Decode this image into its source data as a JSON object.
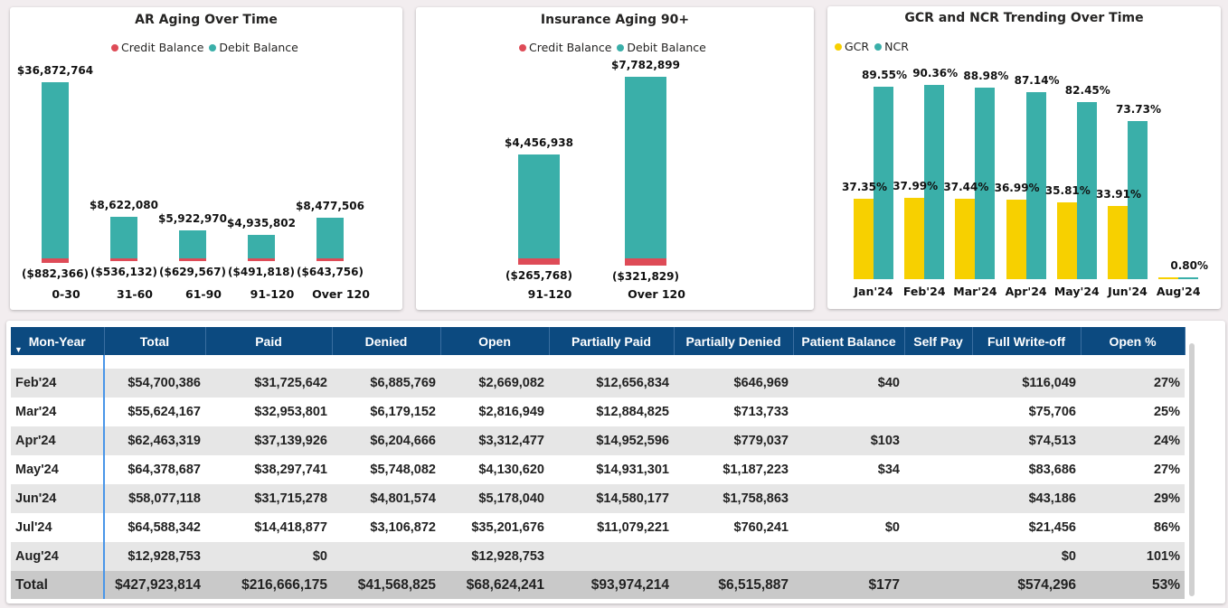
{
  "colors": {
    "credit": "#de4b57",
    "debit": "#3aafa9",
    "gcr": "#f7d000",
    "ncr": "#3aafa9",
    "header": "#0c4a80"
  },
  "ar_chart": {
    "chart_data": {
      "type": "bar",
      "stacked": true,
      "title": "AR Aging Over Time",
      "categories": [
        "0-30",
        "31-60",
        "61-90",
        "91-120",
        "Over 120"
      ],
      "series": [
        {
          "name": "Credit Balance",
          "values": [
            -882366,
            -536132,
            -629567,
            -491818,
            -643756
          ],
          "labels": [
            "($882,366)",
            "($536,132)",
            "($629,567)",
            "($491,818)",
            "($643,756)"
          ]
        },
        {
          "name": "Debit Balance",
          "values": [
            36872764,
            8622080,
            5922970,
            4935802,
            8477506
          ],
          "labels": [
            "$36,872,764",
            "$8,622,080",
            "$5,922,970",
            "$4,935,802",
            "$8,477,506"
          ]
        }
      ],
      "legend": "top"
    }
  },
  "ins_chart": {
    "chart_data": {
      "type": "bar",
      "stacked": true,
      "title": "Insurance Aging 90+",
      "categories": [
        "91-120",
        "Over 120"
      ],
      "series": [
        {
          "name": "Credit Balance",
          "values": [
            -265768,
            -321829
          ],
          "labels": [
            "($265,768)",
            "($321,829)"
          ]
        },
        {
          "name": "Debit Balance",
          "values": [
            4456938,
            7782899
          ],
          "labels": [
            "$4,456,938",
            "$7,782,899"
          ]
        }
      ],
      "legend": "top"
    }
  },
  "gcr_chart": {
    "chart_data": {
      "type": "bar",
      "title": "GCR and NCR Trending Over Time",
      "categories": [
        "Jan'24",
        "Feb'24",
        "Mar'24",
        "Apr'24",
        "May'24",
        "Jun'24",
        "Aug'24"
      ],
      "series": [
        {
          "name": "GCR",
          "values": [
            37.35,
            37.99,
            37.44,
            36.99,
            35.81,
            33.91,
            0.8
          ],
          "labels": [
            "37.35%",
            "37.99%",
            "37.44%",
            "36.99%",
            "35.81%",
            "33.91%",
            ""
          ]
        },
        {
          "name": "NCR",
          "values": [
            89.55,
            90.36,
            88.98,
            87.14,
            82.45,
            73.73,
            0.8
          ],
          "labels": [
            "89.55%",
            "90.36%",
            "88.98%",
            "87.14%",
            "82.45%",
            "73.73%",
            "0.80%"
          ]
        }
      ],
      "legend": "top-left"
    }
  },
  "table": {
    "columns": [
      "Mon-Year",
      "Total",
      "Paid",
      "Denied",
      "Open",
      "Partially Paid",
      "Partially Denied",
      "Patient Balance",
      "Self Pay",
      "Full Write-off",
      "Open %"
    ],
    "rows": [
      [
        "Feb'24",
        "$54,700,386",
        "$31,725,642",
        "$6,885,769",
        "$2,669,082",
        "$12,656,834",
        "$646,969",
        "$40",
        "",
        "$116,049",
        "27%"
      ],
      [
        "Mar'24",
        "$55,624,167",
        "$32,953,801",
        "$6,179,152",
        "$2,816,949",
        "$12,884,825",
        "$713,733",
        "",
        "",
        "$75,706",
        "25%"
      ],
      [
        "Apr'24",
        "$62,463,319",
        "$37,139,926",
        "$6,204,666",
        "$3,312,477",
        "$14,952,596",
        "$779,037",
        "$103",
        "",
        "$74,513",
        "24%"
      ],
      [
        "May'24",
        "$64,378,687",
        "$38,297,741",
        "$5,748,082",
        "$4,130,620",
        "$14,931,301",
        "$1,187,223",
        "$34",
        "",
        "$83,686",
        "27%"
      ],
      [
        "Jun'24",
        "$58,077,118",
        "$31,715,278",
        "$4,801,574",
        "$5,178,040",
        "$14,580,177",
        "$1,758,863",
        "",
        "",
        "$43,186",
        "29%"
      ],
      [
        "Jul'24",
        "$64,588,342",
        "$14,418,877",
        "$3,106,872",
        "$35,201,676",
        "$11,079,221",
        "$760,241",
        "$0",
        "",
        "$21,456",
        "86%"
      ],
      [
        "Aug'24",
        "$12,928,753",
        "$0",
        "",
        "$12,928,753",
        "",
        "",
        "",
        "",
        "$0",
        "101%"
      ]
    ],
    "total": [
      "Total",
      "$427,923,814",
      "$216,666,175",
      "$41,568,825",
      "$68,624,241",
      "$93,974,214",
      "$6,515,887",
      "$177",
      "",
      "$574,296",
      "53%"
    ]
  }
}
